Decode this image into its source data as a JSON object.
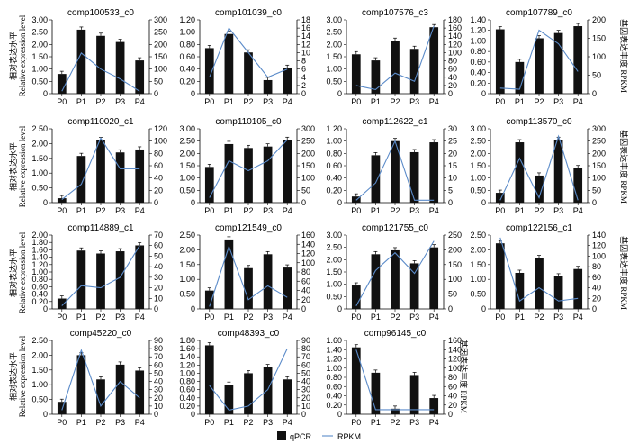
{
  "figure": {
    "y_left_label_cn": "相对表达水平",
    "y_left_label_en": "Relative expression level",
    "y_right_label": "基因表达丰度 RPKM",
    "legend": [
      {
        "name": "qPCR",
        "marker": "bar",
        "color": "#111111"
      },
      {
        "name": "RPKM",
        "marker": "line",
        "color": "#5b8bc9"
      }
    ],
    "colors": {
      "bar": "#111111",
      "line": "#5b8bc9"
    }
  },
  "chart_data": [
    {
      "type": "bar",
      "title": "comp100533_c0",
      "categories": [
        "P0",
        "P1",
        "P2",
        "P3",
        "P4"
      ],
      "series": [
        {
          "name": "qPCR",
          "values": [
            0.8,
            2.6,
            2.35,
            2.1,
            1.35
          ],
          "axis": "left"
        },
        {
          "name": "RPKM",
          "values": [
            10,
            165,
            100,
            60,
            10
          ],
          "axis": "right"
        }
      ],
      "ylim": [
        0,
        3
      ],
      "yticks": [
        "0",
        "0.50",
        "1.00",
        "1.50",
        "2.00",
        "2.50",
        "3.00"
      ],
      "y2lim": [
        0,
        300
      ],
      "y2ticks": [
        "0",
        "50",
        "100",
        "150",
        "200",
        "250",
        "300"
      ]
    },
    {
      "type": "bar",
      "title": "comp101039_c0",
      "categories": [
        "P0",
        "P1",
        "P2",
        "P3",
        "P4"
      ],
      "series": [
        {
          "name": "qPCR",
          "values": [
            0.74,
            0.97,
            0.67,
            0.22,
            0.42
          ],
          "axis": "left"
        },
        {
          "name": "RPKM",
          "values": [
            4,
            16,
            10,
            4,
            6
          ],
          "axis": "right"
        }
      ],
      "ylim": [
        0,
        1.2
      ],
      "yticks": [
        "0",
        "0.20",
        "0.40",
        "0.60",
        "0.80",
        "1.00",
        "1.20"
      ],
      "y2lim": [
        0,
        18
      ],
      "y2ticks": [
        "0",
        "2",
        "4",
        "6",
        "8",
        "10",
        "12",
        "14",
        "16",
        "18"
      ]
    },
    {
      "type": "bar",
      "title": "comp107576_c3",
      "categories": [
        "P0",
        "P1",
        "P2",
        "P3",
        "P4"
      ],
      "series": [
        {
          "name": "qPCR",
          "values": [
            1.6,
            1.35,
            2.15,
            1.82,
            2.7
          ],
          "axis": "left"
        },
        {
          "name": "RPKM",
          "values": [
            20,
            10,
            50,
            30,
            165
          ],
          "axis": "right"
        }
      ],
      "ylim": [
        0,
        3
      ],
      "yticks": [
        "0",
        "0.50",
        "1.00",
        "1.50",
        "2.00",
        "2.50",
        "3.00"
      ],
      "y2lim": [
        0,
        180
      ],
      "y2ticks": [
        "0",
        "20",
        "40",
        "60",
        "80",
        "100",
        "120",
        "140",
        "160",
        "180"
      ]
    },
    {
      "type": "bar",
      "title": "comp107789_c0",
      "categories": [
        "P0",
        "P1",
        "P2",
        "P3",
        "P4"
      ],
      "series": [
        {
          "name": "qPCR",
          "values": [
            1.22,
            0.6,
            1.05,
            1.15,
            1.28
          ],
          "axis": "left"
        },
        {
          "name": "RPKM",
          "values": [
            15,
            12,
            172,
            135,
            60
          ],
          "axis": "right"
        }
      ],
      "ylim": [
        0,
        1.4
      ],
      "yticks": [
        "0",
        "0.20",
        "0.40",
        "0.60",
        "0.80",
        "1.00",
        "1.20",
        "1.40"
      ],
      "y2lim": [
        0,
        200
      ],
      "y2ticks": [
        "0",
        "50",
        "100",
        "150",
        "200"
      ]
    },
    {
      "type": "bar",
      "title": "comp110020_c1",
      "categories": [
        "P0",
        "P1",
        "P2",
        "P3",
        "P4"
      ],
      "series": [
        {
          "name": "qPCR",
          "values": [
            0.15,
            1.58,
            2.12,
            1.7,
            1.8
          ],
          "axis": "left"
        },
        {
          "name": "RPKM",
          "values": [
            5,
            30,
            105,
            55,
            55
          ],
          "axis": "right"
        }
      ],
      "ylim": [
        0,
        2.5
      ],
      "yticks": [
        "0",
        "0.50",
        "1.00",
        "1.50",
        "2.00",
        "2.50"
      ],
      "y2lim": [
        0,
        120
      ],
      "y2ticks": [
        "0",
        "20",
        "40",
        "60",
        "80",
        "100",
        "120"
      ]
    },
    {
      "type": "bar",
      "title": "comp110105_c0",
      "categories": [
        "P0",
        "P1",
        "P2",
        "P3",
        "P4"
      ],
      "series": [
        {
          "name": "qPCR",
          "values": [
            1.45,
            2.38,
            2.22,
            2.28,
            2.55
          ],
          "axis": "left"
        },
        {
          "name": "RPKM",
          "values": [
            20,
            170,
            130,
            170,
            255
          ],
          "axis": "right"
        }
      ],
      "ylim": [
        0,
        3
      ],
      "yticks": [
        "0",
        "0.50",
        "1.00",
        "1.50",
        "2.00",
        "2.50",
        "3.00"
      ],
      "y2lim": [
        0,
        300
      ],
      "y2ticks": [
        "0",
        "50",
        "100",
        "150",
        "200",
        "250",
        "300"
      ]
    },
    {
      "type": "bar",
      "title": "comp112622_c1",
      "categories": [
        "P0",
        "P1",
        "P2",
        "P3",
        "P4"
      ],
      "series": [
        {
          "name": "qPCR",
          "values": [
            0.1,
            0.77,
            1.0,
            0.82,
            0.98
          ],
          "axis": "left"
        },
        {
          "name": "RPKM",
          "values": [
            1,
            8,
            25,
            1,
            1
          ],
          "axis": "right"
        }
      ],
      "ylim": [
        0,
        1.2
      ],
      "yticks": [
        "0",
        "0.20",
        "0.40",
        "0.60",
        "0.80",
        "1.00",
        "1.20"
      ],
      "y2lim": [
        0,
        30
      ],
      "y2ticks": [
        "0",
        "5",
        "10",
        "15",
        "20",
        "25",
        "30"
      ]
    },
    {
      "type": "bar",
      "title": "comp113570_c0",
      "categories": [
        "P0",
        "P1",
        "P2",
        "P3",
        "P4"
      ],
      "series": [
        {
          "name": "qPCR",
          "values": [
            0.4,
            2.45,
            1.1,
            2.55,
            1.4
          ],
          "axis": "left"
        },
        {
          "name": "RPKM",
          "values": [
            10,
            180,
            20,
            270,
            10
          ],
          "axis": "right"
        }
      ],
      "ylim": [
        0,
        3
      ],
      "yticks": [
        "0",
        "0.50",
        "1.00",
        "1.50",
        "2.00",
        "2.50",
        "3.00"
      ],
      "y2lim": [
        0,
        300
      ],
      "y2ticks": [
        "0",
        "50",
        "100",
        "150",
        "200",
        "250",
        "300"
      ]
    },
    {
      "type": "bar",
      "title": "comp114889_c1",
      "categories": [
        "P0",
        "P1",
        "P2",
        "P3",
        "P4"
      ],
      "series": [
        {
          "name": "qPCR",
          "values": [
            0.28,
            1.58,
            1.5,
            1.56,
            1.72
          ],
          "axis": "left"
        },
        {
          "name": "RPKM",
          "values": [
            3,
            22,
            20,
            30,
            60
          ],
          "axis": "right"
        }
      ],
      "ylim": [
        0,
        2
      ],
      "yticks": [
        "0",
        "0.20",
        "0.40",
        "0.60",
        "0.80",
        "1.00",
        "1.20",
        "1.40",
        "1.60",
        "1.80",
        "2.00"
      ],
      "y2lim": [
        0,
        70
      ],
      "y2ticks": [
        "0",
        "10",
        "20",
        "30",
        "40",
        "50",
        "60",
        "70"
      ]
    },
    {
      "type": "bar",
      "title": "comp121549_c0",
      "categories": [
        "P0",
        "P1",
        "P2",
        "P3",
        "P4"
      ],
      "series": [
        {
          "name": "qPCR",
          "values": [
            0.62,
            2.35,
            1.38,
            1.85,
            1.4
          ],
          "axis": "left"
        },
        {
          "name": "RPKM",
          "values": [
            5,
            135,
            20,
            50,
            25
          ],
          "axis": "right"
        }
      ],
      "ylim": [
        0,
        2.5
      ],
      "yticks": [
        "0",
        "0.50",
        "1.00",
        "1.50",
        "2.00",
        "2.50"
      ],
      "y2lim": [
        0,
        160
      ],
      "y2ticks": [
        "0",
        "20",
        "40",
        "60",
        "80",
        "100",
        "120",
        "140",
        "160"
      ]
    },
    {
      "type": "bar",
      "title": "comp121755_c0",
      "categories": [
        "P0",
        "P1",
        "P2",
        "P3",
        "P4"
      ],
      "series": [
        {
          "name": "qPCR",
          "values": [
            0.95,
            2.22,
            2.38,
            1.85,
            2.5
          ],
          "axis": "left"
        },
        {
          "name": "RPKM",
          "values": [
            10,
            130,
            190,
            120,
            230
          ],
          "axis": "right"
        }
      ],
      "ylim": [
        0,
        3
      ],
      "yticks": [
        "0",
        "0.50",
        "1.00",
        "1.50",
        "2.00",
        "2.50",
        "3.00"
      ],
      "y2lim": [
        0,
        250
      ],
      "y2ticks": [
        "0",
        "50",
        "100",
        "150",
        "200",
        "250"
      ]
    },
    {
      "type": "bar",
      "title": "comp122156_c1",
      "categories": [
        "P0",
        "P1",
        "P2",
        "P3",
        "P4"
      ],
      "series": [
        {
          "name": "qPCR",
          "values": [
            2.22,
            1.22,
            1.72,
            1.1,
            1.35
          ],
          "axis": "left"
        },
        {
          "name": "RPKM",
          "values": [
            135,
            15,
            40,
            15,
            20
          ],
          "axis": "right"
        }
      ],
      "ylim": [
        0,
        2.5
      ],
      "yticks": [
        "0",
        "0.50",
        "1.00",
        "1.50",
        "2.00",
        "2.50"
      ],
      "y2lim": [
        0,
        140
      ],
      "y2ticks": [
        "0",
        "20",
        "40",
        "60",
        "80",
        "100",
        "120",
        "140"
      ]
    },
    {
      "type": "bar",
      "title": "comp45220_c0",
      "categories": [
        "P0",
        "P1",
        "P2",
        "P3",
        "P4"
      ],
      "series": [
        {
          "name": "qPCR",
          "values": [
            0.42,
            2.0,
            1.18,
            1.68,
            1.48
          ],
          "axis": "left"
        },
        {
          "name": "RPKM",
          "values": [
            5,
            78,
            10,
            40,
            20
          ],
          "axis": "right"
        }
      ],
      "ylim": [
        0,
        2.5
      ],
      "yticks": [
        "0",
        "0.50",
        "1.00",
        "1.50",
        "2.00",
        "2.50"
      ],
      "y2lim": [
        0,
        90
      ],
      "y2ticks": [
        "0",
        "10",
        "20",
        "30",
        "40",
        "50",
        "60",
        "70",
        "80",
        "90"
      ]
    },
    {
      "type": "bar",
      "title": "comp48393_c0",
      "categories": [
        "P0",
        "P1",
        "P2",
        "P3",
        "P4"
      ],
      "series": [
        {
          "name": "qPCR",
          "values": [
            1.68,
            0.72,
            1.0,
            1.15,
            0.85
          ],
          "axis": "left"
        },
        {
          "name": "RPKM",
          "values": [
            35,
            5,
            10,
            30,
            80
          ],
          "axis": "right"
        }
      ],
      "ylim": [
        0,
        1.8
      ],
      "yticks": [
        "0",
        "0.20",
        "0.40",
        "0.60",
        "0.80",
        "1.00",
        "1.20",
        "1.40",
        "1.60",
        "1.80"
      ],
      "y2lim": [
        0,
        90
      ],
      "y2ticks": [
        "0",
        "10",
        "20",
        "30",
        "40",
        "50",
        "60",
        "70",
        "80",
        "90"
      ]
    },
    {
      "type": "bar",
      "title": "comp96145_c0",
      "categories": [
        "P0",
        "P1",
        "P2",
        "P3",
        "P4"
      ],
      "series": [
        {
          "name": "qPCR",
          "values": [
            1.45,
            0.9,
            0.12,
            0.85,
            0.35
          ],
          "axis": "left"
        },
        {
          "name": "RPKM",
          "values": [
            140,
            10,
            10,
            10,
            10
          ],
          "axis": "right"
        }
      ],
      "ylim": [
        0,
        1.6
      ],
      "yticks": [
        "0",
        "0.20",
        "0.40",
        "0.60",
        "0.80",
        "1.00",
        "1.20",
        "1.40",
        "1.60"
      ],
      "y2lim": [
        0,
        160
      ],
      "y2ticks": [
        "0",
        "20",
        "40",
        "60",
        "80",
        "100",
        "120",
        "140",
        "160"
      ]
    }
  ]
}
